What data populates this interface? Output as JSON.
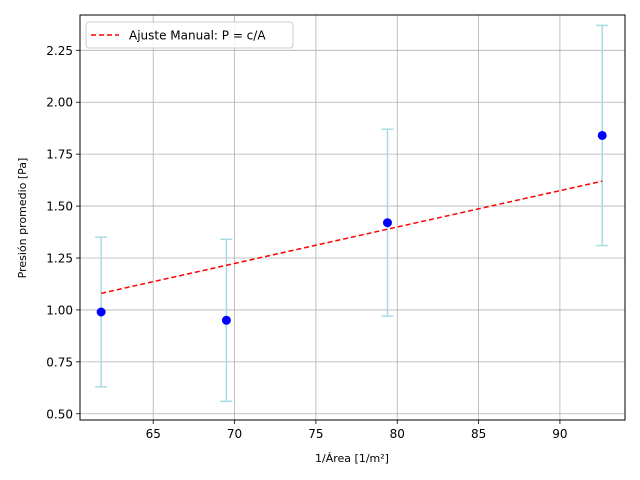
{
  "chart_data": {
    "type": "scatter",
    "title": "",
    "xlabel": "1/Área [1/m²]",
    "ylabel": "Presión promedio [Pa]",
    "xlim": [
      60.5,
      94.0
    ],
    "ylim": [
      0.47,
      2.42
    ],
    "xticks": [
      65,
      70,
      75,
      80,
      85,
      90
    ],
    "yticks": [
      0.5,
      0.75,
      1.0,
      1.25,
      1.5,
      1.75,
      2.0,
      2.25
    ],
    "grid": true,
    "legend_position": "top-left",
    "points": [
      {
        "x": 61.8,
        "y": 0.99,
        "err": 0.36
      },
      {
        "x": 69.5,
        "y": 0.95,
        "err": 0.39
      },
      {
        "x": 79.4,
        "y": 1.42,
        "err": 0.45
      },
      {
        "x": 92.6,
        "y": 1.84,
        "err": 0.53
      }
    ],
    "fit": {
      "name": "Ajuste Manual: P = c/A",
      "color": "#ff0000",
      "style": "dashed",
      "x": [
        61.8,
        92.6
      ],
      "y": [
        1.08,
        1.62
      ]
    },
    "colors": {
      "points": "#0000ff",
      "errorbars": "#a8dce4",
      "grid": "#b0b0b0"
    }
  }
}
